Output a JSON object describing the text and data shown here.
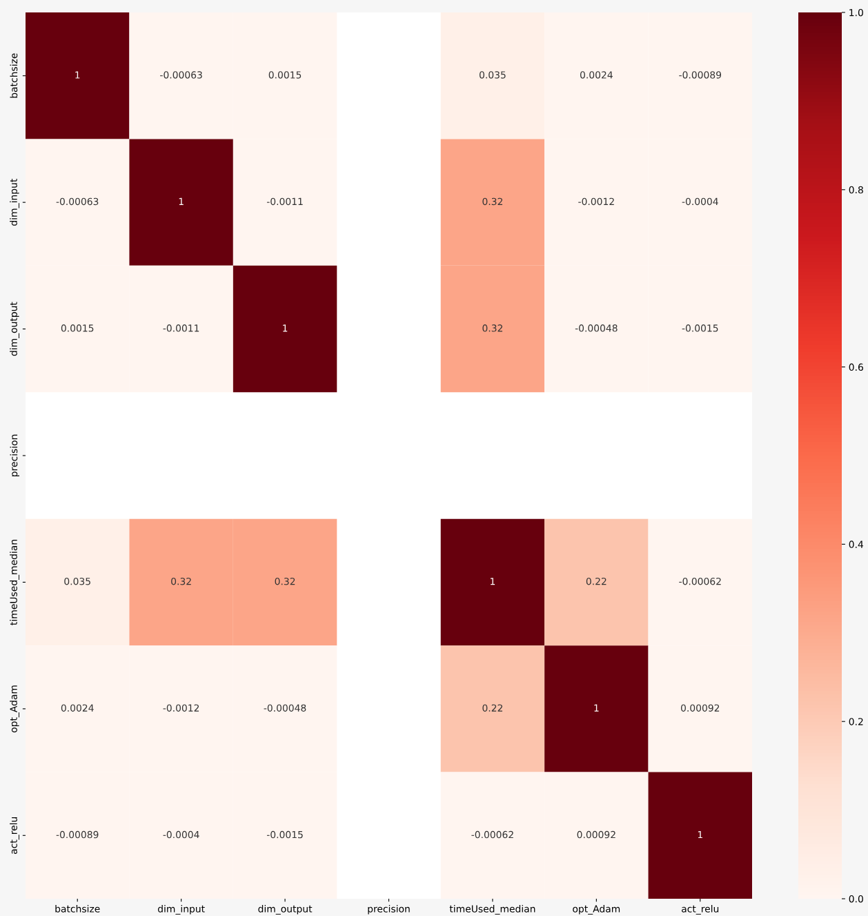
{
  "chart_data": {
    "type": "heatmap",
    "categories": [
      "batchsize",
      "dim_input",
      "dim_output",
      "precision",
      "timeUsed_median",
      "opt_Adam",
      "act_relu"
    ],
    "y_categories": [
      "batchsize",
      "dim_input",
      "dim_output",
      "precision",
      "timeUsed_median",
      "opt_Adam",
      "act_relu"
    ],
    "cells": [
      [
        1,
        -0.00063,
        0.0015,
        null,
        0.035,
        0.0024,
        -0.00089
      ],
      [
        -0.00063,
        1,
        -0.0011,
        null,
        0.32,
        -0.0012,
        -0.0004
      ],
      [
        0.0015,
        -0.0011,
        1,
        null,
        0.32,
        -0.00048,
        -0.0015
      ],
      [
        null,
        null,
        null,
        null,
        null,
        null,
        null
      ],
      [
        0.035,
        0.32,
        0.32,
        null,
        1,
        0.22,
        -0.00062
      ],
      [
        0.0024,
        -0.0012,
        -0.00048,
        null,
        0.22,
        1,
        0.00092
      ],
      [
        -0.00089,
        -0.0004,
        -0.0015,
        null,
        -0.00062,
        0.00092,
        1
      ]
    ],
    "data_labels": true,
    "clim": [
      0,
      1
    ],
    "cticks": [
      {
        "value": 0,
        "label": "0.0"
      },
      {
        "value": 0.2,
        "label": "0.2"
      },
      {
        "value": 0.4,
        "label": "0.4"
      },
      {
        "value": 0.6,
        "label": "0.6"
      },
      {
        "value": 0.8,
        "label": "0.8"
      },
      {
        "value": 1,
        "label": "1.0"
      }
    ]
  }
}
